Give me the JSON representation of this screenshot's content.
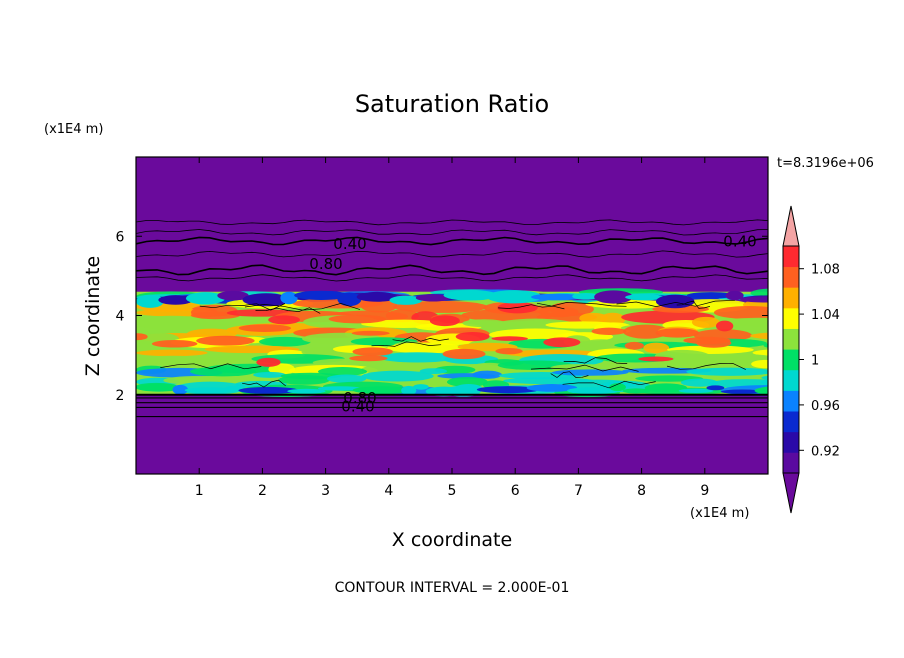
{
  "chart_data": {
    "type": "heatmap",
    "title": "Saturation Ratio",
    "xlabel": "X coordinate",
    "ylabel": "Z coordinate",
    "x_unit": "(x1E4 m)",
    "y_unit": "(x1E4 m)",
    "xlim": [
      0,
      10
    ],
    "ylim": [
      0,
      8
    ],
    "x_ticks": [
      "1",
      "2",
      "3",
      "4",
      "5",
      "6",
      "7",
      "8",
      "9"
    ],
    "y_ticks": [
      "2",
      "4",
      "6"
    ],
    "time_label": "t=8.3196e+06",
    "footer": "CONTOUR INTERVAL = 2.000E-01",
    "contour_labels": [
      "0.40",
      "0.80",
      "0.40",
      "0.80",
      "0.40"
    ],
    "colorbar": {
      "ticks": [
        "0.92",
        "0.96",
        "1",
        "1.04",
        "1.08"
      ],
      "levels": [
        0.9,
        0.92,
        0.94,
        0.96,
        0.98,
        1.0,
        1.02,
        1.04,
        1.06,
        1.08,
        1.1
      ],
      "colors": [
        "#5a0aa0",
        "#2a0aa8",
        "#0a2ad0",
        "#0a82ff",
        "#00d8d0",
        "#00e066",
        "#8ce23c",
        "#ffff00",
        "#ffb000",
        "#ff6020",
        "#ff2a30"
      ],
      "under_color": "#6a0a9c",
      "over_color": "#f4a4a4"
    },
    "regions": {
      "background_value": "below 0.90",
      "saturated_layer_z": [
        2.0,
        4.6
      ],
      "contours_above": [
        0.4,
        0.8
      ],
      "contours_below": [
        0.8,
        0.4
      ]
    }
  },
  "colors": {
    "field_background": "#6a0a9c"
  }
}
